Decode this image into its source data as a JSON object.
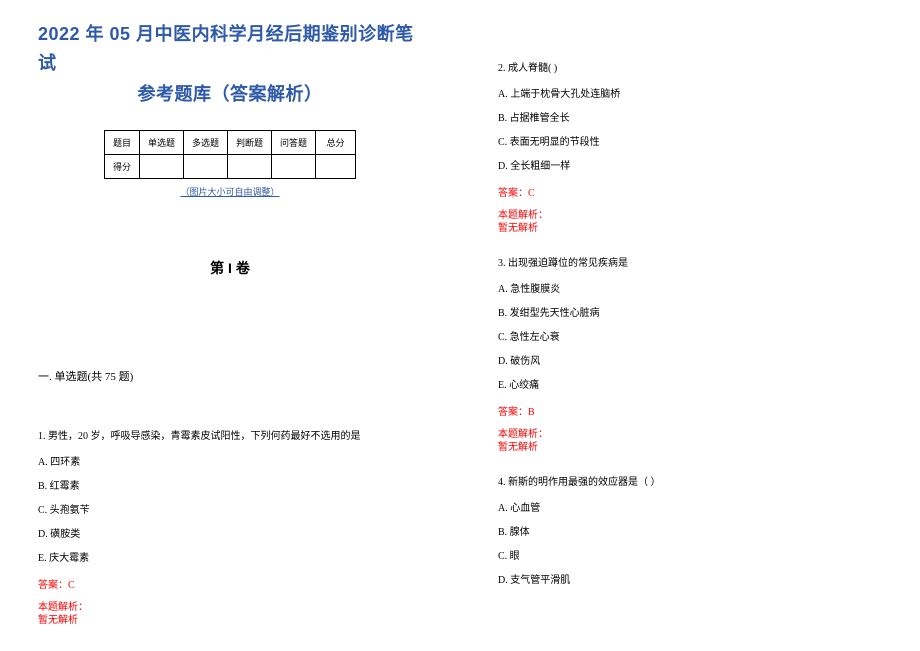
{
  "title_line1": "2022 年 05 月中医内科学月经后期鉴别诊断笔试",
  "title_line2": "参考题库（答案解析）",
  "score_table": {
    "row1": [
      "题目",
      "单选题",
      "多选题",
      "判断题",
      "问答题",
      "总分"
    ],
    "row2_label": "得分"
  },
  "table_note": "（图片大小可自由调整）",
  "juan_label": "第 I 卷",
  "section_single": "一. 单选题(共 75 题)",
  "q1": {
    "stem": "1. 男性，20 岁，呼吸导感染，青霉素皮试阳性，下列何药最好不选用的是",
    "opts": [
      "A. 四环素",
      "B. 红霉素",
      "C. 头孢氨苄",
      "D. 磺胺类",
      "E. 庆大霉素"
    ],
    "answer": "答案：C",
    "explain_label": "本题解析：",
    "explain_body": "暂无解析"
  },
  "q2": {
    "stem": "2. 成人脊髓(   )",
    "opts": [
      "A. 上端于枕骨大孔处连脑桥",
      "B. 占据椎管全长",
      "C. 表面无明显的节段性",
      "D. 全长粗细一样"
    ],
    "answer": "答案：C",
    "explain_label": "本题解析：",
    "explain_body": "暂无解析"
  },
  "q3": {
    "stem": "3. 出现强迫蹲位的常见疾病是",
    "opts": [
      "A. 急性腹膜炎",
      "B. 发绀型先天性心脏病",
      "C. 急性左心衰",
      "D. 破伤风",
      "E. 心绞痛"
    ],
    "answer": "答案：B",
    "explain_label": "本题解析：",
    "explain_body": "暂无解析"
  },
  "q4": {
    "stem": "4. 新斯的明作用最强的效应器是（  ）",
    "opts": [
      "A. 心血管",
      "B. 腺体",
      "C. 眼",
      "D. 支气管平滑肌"
    ]
  },
  "colors": {
    "title": "#2e5aa8",
    "answer": "#ff0000",
    "text": "#000000",
    "bg": "#ffffff"
  }
}
